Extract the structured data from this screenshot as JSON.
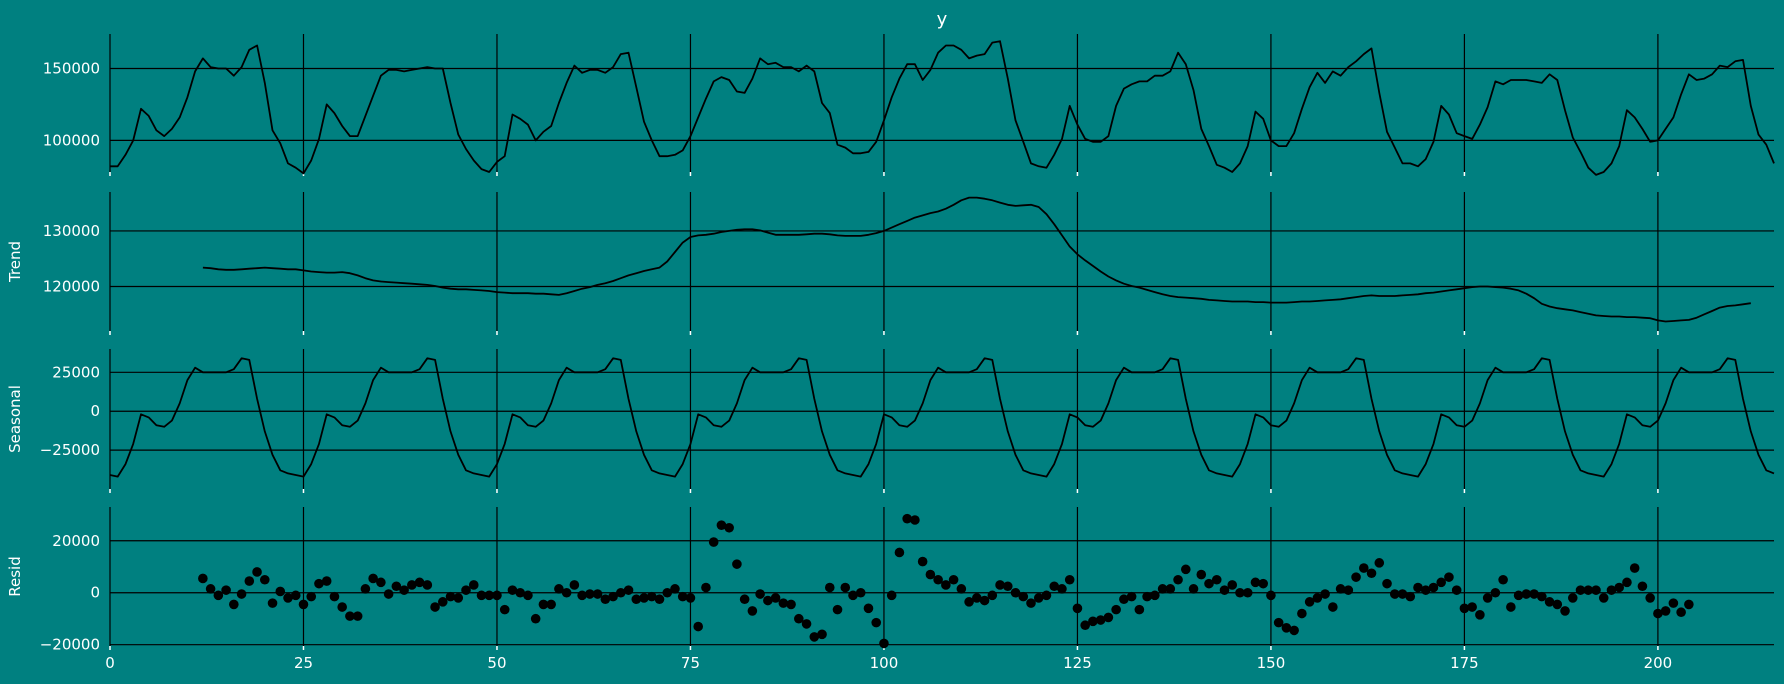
{
  "chart_data": {
    "type": "line",
    "title": "y",
    "colors": {
      "background": "#008080",
      "line": "#000000",
      "text": "#ffffff"
    },
    "grid": true,
    "xlim": [
      0,
      215
    ],
    "x_ticks": [
      0,
      25,
      50,
      75,
      100,
      125,
      150,
      175,
      200
    ],
    "panels": [
      {
        "id": "observed",
        "type": "line",
        "ylabel": "",
        "ylim": [
          78000,
          174000
        ],
        "y_ticks": [
          100000,
          150000
        ],
        "x_start": 0,
        "values": [
          82000,
          82000,
          90000,
          100000,
          122000,
          117000,
          107000,
          103000,
          108000,
          116000,
          130000,
          148000,
          157000,
          151000,
          150000,
          150000,
          145000,
          151000,
          163000,
          166000,
          140000,
          107000,
          98000,
          84000,
          81000,
          77000,
          86000,
          101000,
          125000,
          119000,
          110000,
          103000,
          103000,
          117000,
          131000,
          145000,
          149000,
          149000,
          148000,
          149000,
          150000,
          151000,
          150000,
          150000,
          126000,
          104000,
          94000,
          86000,
          80000,
          78000,
          85000,
          89000,
          118000,
          115000,
          111000,
          100000,
          106000,
          110000,
          126000,
          140000,
          152000,
          147000,
          149000,
          149000,
          147000,
          151000,
          160000,
          161000,
          137000,
          113000,
          100000,
          89000,
          89000,
          90000,
          93000,
          103000,
          116000,
          129000,
          141000,
          144000,
          142000,
          134000,
          133000,
          143000,
          157000,
          153000,
          154000,
          151000,
          151000,
          148000,
          152000,
          148000,
          126000,
          119000,
          97000,
          95000,
          91000,
          91000,
          92000,
          99000,
          114000,
          130000,
          143000,
          153000,
          153000,
          142000,
          149000,
          161000,
          166000,
          166000,
          163000,
          157000,
          159000,
          160000,
          168000,
          169000,
          143000,
          114000,
          99000,
          84000,
          82000,
          81000,
          90000,
          101000,
          124000,
          111000,
          101000,
          99000,
          99000,
          103000,
          124000,
          136000,
          139000,
          141000,
          141000,
          145000,
          145000,
          148000,
          161000,
          153000,
          135000,
          108000,
          96000,
          83000,
          81000,
          78000,
          84000,
          96000,
          120000,
          115000,
          100000,
          96000,
          96000,
          105000,
          122000,
          137000,
          147000,
          140000,
          148000,
          145000,
          151000,
          155000,
          160000,
          164000,
          133000,
          106000,
          95000,
          84000,
          84000,
          82000,
          87000,
          99000,
          124000,
          118000,
          105000,
          103000,
          101000,
          111000,
          123000,
          141000,
          139000,
          142000,
          142000,
          142000,
          141000,
          140000,
          146000,
          142000,
          121000,
          102000,
          92000,
          81000,
          76000,
          78000,
          84000,
          96000,
          121000,
          116000,
          108000,
          99000,
          100000,
          108000,
          116000,
          132000,
          146000,
          142000,
          143000,
          146000,
          152000,
          151000,
          155000,
          156000,
          124000,
          104000,
          97000,
          84000
        ]
      },
      {
        "id": "trend",
        "type": "line",
        "ylabel": "Trend",
        "ylim": [
          112000,
          137000
        ],
        "y_ticks": [
          120000,
          130000
        ],
        "x_start": 12,
        "values": [
          123400,
          123300,
          123100,
          123000,
          123000,
          123100,
          123200,
          123300,
          123400,
          123300,
          123200,
          123100,
          123100,
          122900,
          122700,
          122600,
          122500,
          122500,
          122600,
          122400,
          122000,
          121500,
          121100,
          120900,
          120800,
          120700,
          120600,
          120500,
          120400,
          120300,
          120100,
          119800,
          119600,
          119500,
          119500,
          119400,
          119300,
          119200,
          119000,
          118900,
          118800,
          118800,
          118800,
          118700,
          118700,
          118600,
          118500,
          118800,
          119200,
          119600,
          119900,
          120300,
          120600,
          121000,
          121500,
          122000,
          122400,
          122800,
          123100,
          123400,
          124500,
          126200,
          127900,
          128900,
          129200,
          129300,
          129500,
          129800,
          130000,
          130200,
          130300,
          130300,
          130100,
          129700,
          129300,
          129300,
          129300,
          129300,
          129400,
          129500,
          129500,
          129400,
          129200,
          129100,
          129100,
          129100,
          129300,
          129600,
          130000,
          130600,
          131200,
          131800,
          132400,
          132800,
          133200,
          133500,
          134000,
          134700,
          135500,
          136000,
          136000,
          135800,
          135500,
          135100,
          134700,
          134500,
          134600,
          134700,
          134300,
          133000,
          131200,
          129200,
          127200,
          125800,
          124700,
          123700,
          122700,
          121800,
          121100,
          120500,
          120100,
          119800,
          119400,
          119000,
          118600,
          118300,
          118100,
          118000,
          117900,
          117800,
          117600,
          117500,
          117400,
          117300,
          117300,
          117300,
          117200,
          117200,
          117100,
          117100,
          117100,
          117200,
          117300,
          117300,
          117400,
          117500,
          117600,
          117700,
          117900,
          118100,
          118300,
          118400,
          118300,
          118300,
          118300,
          118400,
          118500,
          118600,
          118800,
          118900,
          119100,
          119300,
          119500,
          119700,
          119900,
          120000,
          120000,
          119900,
          119800,
          119600,
          119300,
          118700,
          117900,
          116900,
          116400,
          116100,
          115900,
          115700,
          115400,
          115100,
          114800,
          114700,
          114600,
          114600,
          114500,
          114500,
          114400,
          114300,
          113900,
          113700,
          113800,
          113900,
          114000,
          114400,
          115000,
          115600,
          116200,
          116500,
          116600,
          116800,
          117000
        ]
      },
      {
        "id": "seasonal",
        "type": "line",
        "ylabel": "Seasonal",
        "ylim": [
          -50000,
          40000
        ],
        "y_ticks": [
          -25000,
          0,
          25000
        ],
        "x_start": 0,
        "period": 24,
        "values": [
          -41000,
          -42000,
          -34000,
          -21000,
          -2000,
          -4000,
          -9000,
          -10000,
          -6000,
          5000,
          20000,
          28000,
          25000,
          25000,
          25000,
          25000,
          27000,
          34000,
          33000,
          8000,
          -13000,
          -28000,
          -38000,
          -40000
        ]
      },
      {
        "id": "resid",
        "type": "scatter",
        "ylabel": "Resid",
        "ylim": [
          -20500,
          33000
        ],
        "y_ticks": [
          -20000,
          0,
          20000
        ],
        "x_start": 12,
        "values": [
          5500,
          1500,
          -1000,
          1000,
          -4500,
          -500,
          4500,
          8000,
          5000,
          -4000,
          500,
          -2000,
          -1000,
          -4500,
          -1500,
          3500,
          4500,
          -1500,
          -5500,
          -9000,
          -9000,
          1500,
          5500,
          4000,
          -500,
          2500,
          1000,
          3000,
          4000,
          3000,
          -5500,
          -3500,
          -1500,
          -2000,
          1000,
          3000,
          -1000,
          -1000,
          -1000,
          -6500,
          1000,
          0,
          -1000,
          -10000,
          -4500,
          -4500,
          1500,
          0,
          3000,
          -1000,
          -500,
          -500,
          -2500,
          -1500,
          0,
          1000,
          -2500,
          -2000,
          -1500,
          -2500,
          0,
          1500,
          -1500,
          -2000,
          -13000,
          2000,
          19500,
          26000,
          25000,
          11000,
          -2500,
          -7000,
          -500,
          -3000,
          -2000,
          -4000,
          -4500,
          -10000,
          -12000,
          -17000,
          -16000,
          2000,
          -6500,
          2000,
          -1000,
          0,
          -6000,
          -11500,
          -19500,
          -1000,
          15500,
          28500,
          28000,
          12000,
          7000,
          5000,
          3000,
          5000,
          1500,
          -3500,
          -2000,
          -3000,
          -1000,
          3000,
          2500,
          0,
          -1500,
          -4000,
          -2000,
          -1000,
          2500,
          1500,
          5000,
          -6000,
          -12500,
          -11000,
          -10500,
          -9500,
          -6500,
          -2500,
          -1500,
          -6500,
          -1500,
          -1000,
          1500,
          1500,
          5000,
          9000,
          1500,
          7000,
          3500,
          5000,
          1000,
          3000,
          0,
          0,
          4000,
          3500,
          -1000,
          -11500,
          -13500,
          -14500,
          -8000,
          -3500,
          -2000,
          -500,
          -5500,
          1500,
          1000,
          6000,
          9500,
          7500,
          11500,
          3500,
          -500,
          -500,
          -1500,
          2000,
          1000,
          2000,
          4000,
          6000,
          1000,
          -6000,
          -5500,
          -8500,
          -2000,
          0,
          5000,
          -5500,
          -1000,
          -500,
          -500,
          -1500,
          -3500,
          -4500,
          -7000,
          -2000,
          1000,
          1000,
          1000,
          -2000,
          1000,
          2000,
          4000,
          9500,
          2500,
          -2000,
          -8000,
          -7000,
          -4000,
          -7500,
          -4500
        ]
      }
    ]
  }
}
